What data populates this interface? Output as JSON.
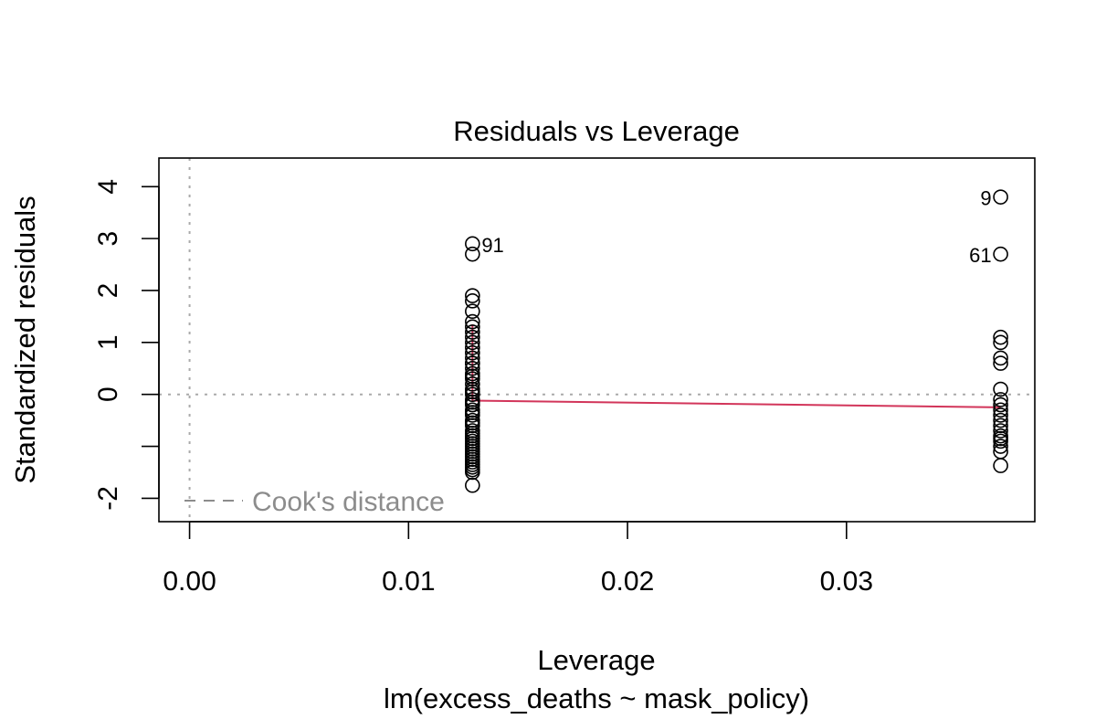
{
  "chart_data": {
    "type": "scatter",
    "title": "Residuals vs Leverage",
    "xlabel": "Leverage",
    "subtitle": "lm(excess_deaths ~ mask_policy)",
    "ylabel": "Standardized residuals",
    "xlim": [
      -0.0014,
      0.0386
    ],
    "ylim": [
      -2.45,
      4.55
    ],
    "x_ticks": [
      0.0,
      0.01,
      0.02,
      0.03
    ],
    "x_tick_labels": [
      "0.00",
      "0.01",
      "0.02",
      "0.03"
    ],
    "y_ticks": [
      -2,
      -1,
      0,
      1,
      2,
      3,
      4
    ],
    "y_tick_labels": [
      "-2",
      "",
      "0",
      "1",
      "2",
      "3",
      "4"
    ],
    "grid": false,
    "reference_lines": {
      "vertical_x": 0,
      "horizontal_y": 0,
      "style": "dotted"
    },
    "legend": {
      "label": "Cook's distance",
      "position": "bottom-left",
      "line_style": "dashed"
    },
    "colors": {
      "points": "#000000",
      "smooth_line": "#d2355a",
      "reference": "#aaaaaa",
      "legend_text": "#8c8c8c"
    },
    "series": [
      {
        "x": [
          0.01292,
          0.01292,
          0.01292,
          0.01292,
          0.01292,
          0.01292,
          0.01292,
          0.01292,
          0.01292,
          0.01292,
          0.01292,
          0.01292,
          0.01292,
          0.01292,
          0.01292,
          0.01292,
          0.01292,
          0.01292,
          0.01292,
          0.01292,
          0.01292,
          0.01292,
          0.01292,
          0.01292,
          0.01292,
          0.01292,
          0.01292,
          0.01292,
          0.01292,
          0.01292,
          0.01292,
          0.01292,
          0.01292,
          0.01292,
          0.01292,
          0.01292,
          0.01292,
          0.01292,
          0.01292,
          0.01292,
          0.01292,
          0.01292,
          0.01292,
          0.01292,
          0.01292,
          0.01292,
          0.01292,
          0.01292,
          0.01292,
          0.01292,
          0.03704,
          0.03704,
          0.03704,
          0.03704,
          0.03704,
          0.03704,
          0.03704,
          0.03704,
          0.03704,
          0.03704,
          0.03704,
          0.03704,
          0.03704,
          0.03704,
          0.03704,
          0.03704,
          0.03704,
          0.03704,
          0.03704,
          0.03704
        ],
        "y": [
          2.9,
          2.7,
          1.9,
          1.8,
          1.6,
          1.4,
          1.3,
          1.2,
          1.1,
          1.0,
          0.9,
          0.8,
          0.7,
          0.6,
          0.5,
          0.4,
          0.35,
          0.3,
          0.2,
          0.1,
          0.0,
          -0.1,
          -0.2,
          -0.3,
          -0.35,
          -0.4,
          -0.5,
          -0.55,
          -0.6,
          -0.7,
          -0.75,
          -0.8,
          -0.85,
          -0.9,
          -0.95,
          -1.0,
          -1.05,
          -1.1,
          -1.15,
          -1.2,
          -1.25,
          -1.3,
          -1.35,
          -1.4,
          -1.45,
          -1.5,
          -1.75,
          0.05,
          -0.15,
          0.6,
          3.8,
          2.7,
          1.1,
          1.0,
          0.7,
          0.6,
          0.1,
          -0.1,
          -0.2,
          -0.3,
          -0.4,
          -0.5,
          -0.6,
          -0.7,
          -0.8,
          -0.85,
          -0.9,
          -1.0,
          -1.1,
          -1.37
        ]
      }
    ],
    "point_labels": [
      {
        "text": "91",
        "x": 0.01292,
        "y": 2.9,
        "side": "right"
      },
      {
        "text": "9",
        "x": 0.03704,
        "y": 3.8,
        "side": "left"
      },
      {
        "text": "61",
        "x": 0.03704,
        "y": 2.7,
        "side": "left"
      }
    ],
    "smooth_line": {
      "x": [
        0.01292,
        0.01292,
        0.01292,
        0.01292,
        0.03704
      ],
      "y": [
        1.35,
        0.6,
        0.0,
        -0.12,
        -0.25
      ]
    }
  }
}
